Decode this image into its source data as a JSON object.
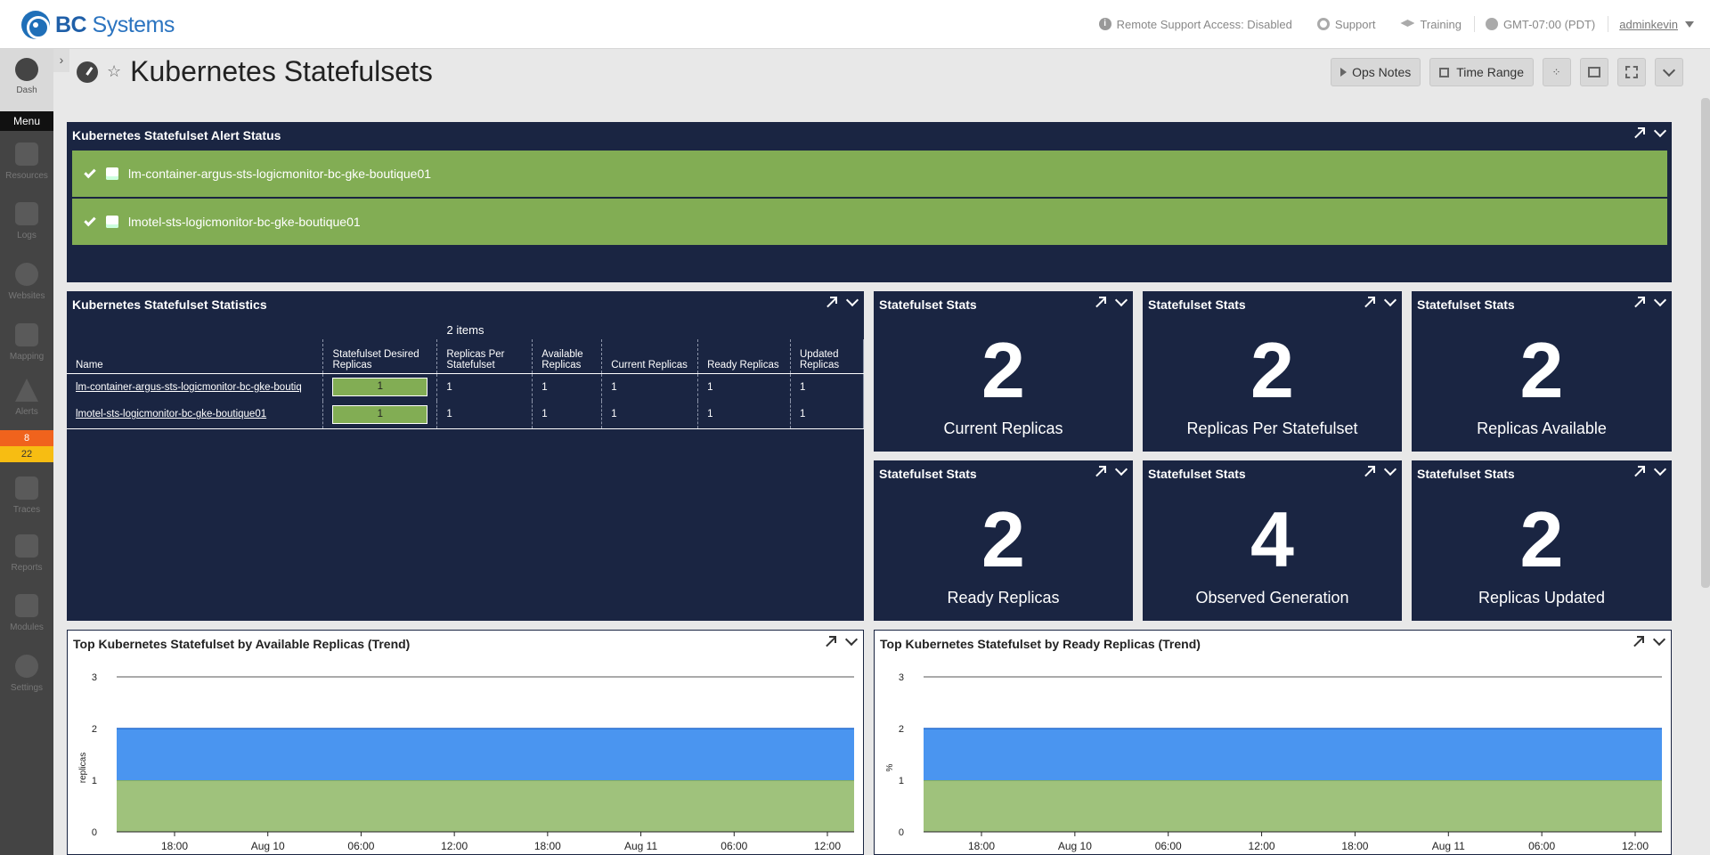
{
  "app": {
    "logo_bold": "BC",
    "logo_light": " Systems"
  },
  "topbar": {
    "remote_support": "Remote Support Access: Disabled",
    "support": "Support",
    "training": "Training",
    "timezone": "GMT-07:00 (PDT)",
    "user": "adminkevin"
  },
  "sidebar": {
    "dash": "Dash",
    "menu": "Menu",
    "items": [
      {
        "label": "Resources",
        "icon": "server-icon"
      },
      {
        "label": "Logs",
        "icon": "logs-icon"
      },
      {
        "label": "Websites",
        "icon": "globe-icon"
      },
      {
        "label": "Mapping",
        "icon": "mapping-icon"
      },
      {
        "label": "Alerts",
        "icon": "alert-icon"
      },
      {
        "label": "Traces",
        "icon": "traces-icon"
      },
      {
        "label": "Reports",
        "icon": "reports-icon"
      },
      {
        "label": "Modules",
        "icon": "modules-icon"
      },
      {
        "label": "Settings",
        "icon": "gear-icon"
      }
    ],
    "alert_badges": {
      "orange": "8",
      "yellow": "22"
    }
  },
  "page": {
    "title": "Kubernetes Statefulsets"
  },
  "toolbar": {
    "ops_notes": "Ops Notes",
    "time_range": "Time Range"
  },
  "alert_widget": {
    "title": "Kubernetes Statefulset Alert Status",
    "rows": [
      "lm-container-argus-sts-logicmonitor-bc-gke-boutique01",
      "lmotel-sts-logicmonitor-bc-gke-boutique01"
    ]
  },
  "stats_widget": {
    "title": "Kubernetes Statefulset Statistics",
    "items_count": "2 items",
    "columns": [
      "Name",
      "Statefulset Desired Replicas",
      "Replicas Per Statefulset",
      "Available Replicas",
      "Current Replicas",
      "Ready Replicas",
      "Updated Replicas"
    ],
    "rows": [
      [
        "lm-container-argus-sts-logicmonitor-bc-gke-boutiq",
        "1",
        "1",
        "1",
        "1",
        "1",
        "1"
      ],
      [
        "lmotel-sts-logicmonitor-bc-gke-boutique01",
        "1",
        "1",
        "1",
        "1",
        "1",
        "1"
      ]
    ]
  },
  "big_numbers": [
    {
      "title": "Statefulset Stats",
      "value": "2",
      "label": "Current Replicas"
    },
    {
      "title": "Statefulset Stats",
      "value": "2",
      "label": "Replicas Per Statefulset"
    },
    {
      "title": "Statefulset Stats",
      "value": "2",
      "label": "Replicas Available"
    },
    {
      "title": "Statefulset Stats",
      "value": "2",
      "label": "Ready Replicas"
    },
    {
      "title": "Statefulset Stats",
      "value": "4",
      "label": "Observed Generation"
    },
    {
      "title": "Statefulset Stats",
      "value": "2",
      "label": "Replicas Updated"
    }
  ],
  "chart_data": [
    {
      "type": "area",
      "title": "Top Kubernetes Statefulset by Available Replicas (Trend)",
      "ylabel": "replicas",
      "ylim": [
        0,
        3
      ],
      "yticks": [
        "0",
        "1",
        "2",
        "3"
      ],
      "xticks": [
        "18:00",
        "Aug 10",
        "06:00",
        "12:00",
        "18:00",
        "Aug 11",
        "06:00",
        "12:00"
      ],
      "series": [
        {
          "values": [
            1,
            1
          ],
          "color": "#9fc27c"
        },
        {
          "values": [
            1,
            1
          ],
          "color": "#4a95f0"
        }
      ]
    },
    {
      "type": "area",
      "title": "Top Kubernetes Statefulset by Ready Replicas (Trend)",
      "ylabel": "%",
      "ylim": [
        0,
        3
      ],
      "yticks": [
        "0",
        "1",
        "2",
        "3"
      ],
      "xticks": [
        "18:00",
        "Aug 10",
        "06:00",
        "12:00",
        "18:00",
        "Aug 11",
        "06:00",
        "12:00"
      ],
      "series": [
        {
          "values": [
            1,
            1
          ],
          "color": "#9fc27c"
        },
        {
          "values": [
            1,
            1
          ],
          "color": "#4a95f0"
        }
      ]
    }
  ]
}
